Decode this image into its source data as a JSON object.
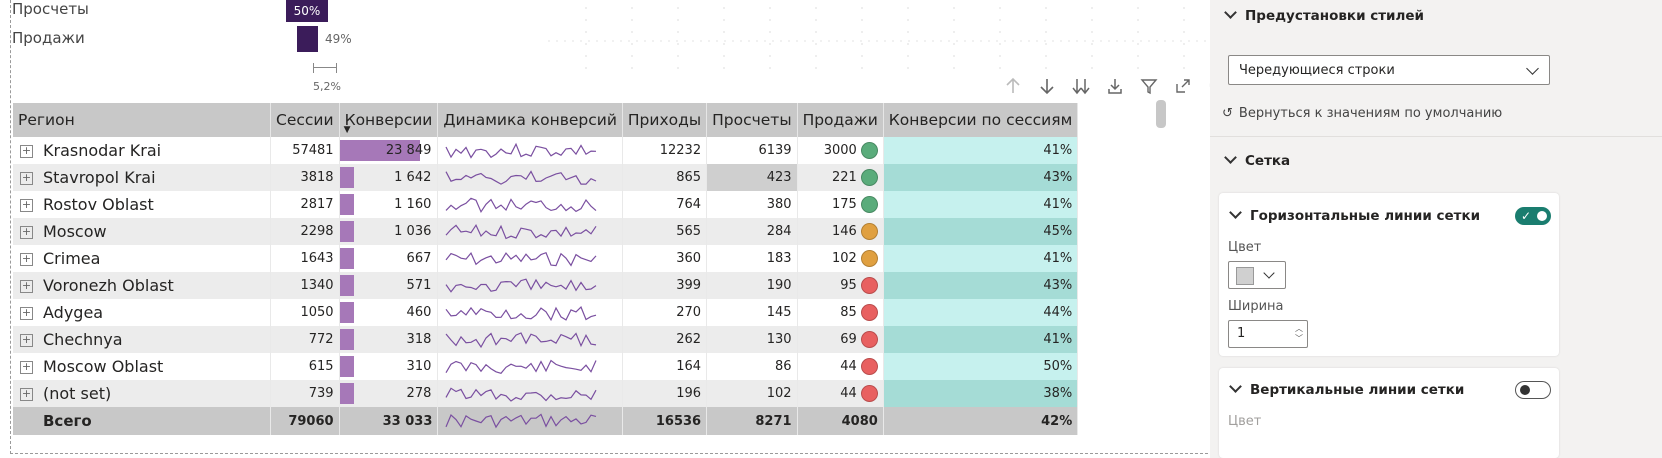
{
  "funnel": {
    "rows": [
      {
        "label": "Просчеты",
        "pct": "50%",
        "value": 0.5
      },
      {
        "label": "Продажи",
        "pct": "49%",
        "value": 0.49
      }
    ],
    "interval_label": "5,2%",
    "bar_color": "#3b1c5a"
  },
  "visual_header_icons": [
    "arrow-up-icon",
    "arrow-down-icon",
    "double-arrow-down-icon",
    "expand-hierarchy-icon",
    "filter-icon",
    "focus-mode-icon",
    "more-options-icon"
  ],
  "table": {
    "headers": [
      "Регион",
      "Сессии",
      "Конверсии",
      "Динамика конверсий",
      "Приходы",
      "Просчеты",
      "Продажи",
      "Конверсии по сессиям"
    ],
    "sorted_column": "Конверсии",
    "sort_direction": "descending",
    "rows": [
      {
        "region": "Krasnodar Krai",
        "sessions": "57481",
        "conversions": "23 849",
        "conv_value": 23849,
        "arrivals": "12232",
        "estimates": "6139",
        "sales": "3000",
        "status": "green",
        "conv_rate": "41%"
      },
      {
        "region": "Stavropol Krai",
        "sessions": "3818",
        "conversions": "1 642",
        "conv_value": 1642,
        "arrivals": "865",
        "estimates": "423",
        "sales": "221",
        "status": "green",
        "conv_rate": "43%"
      },
      {
        "region": "Rostov Oblast",
        "sessions": "2817",
        "conversions": "1 160",
        "conv_value": 1160,
        "arrivals": "764",
        "estimates": "380",
        "sales": "175",
        "status": "green",
        "conv_rate": "41%"
      },
      {
        "region": "Moscow",
        "sessions": "2298",
        "conversions": "1 036",
        "conv_value": 1036,
        "arrivals": "565",
        "estimates": "284",
        "sales": "146",
        "status": "orange",
        "conv_rate": "45%"
      },
      {
        "region": "Crimea",
        "sessions": "1643",
        "conversions": "667",
        "conv_value": 667,
        "arrivals": "360",
        "estimates": "183",
        "sales": "102",
        "status": "orange",
        "conv_rate": "41%"
      },
      {
        "region": "Voronezh Oblast",
        "sessions": "1340",
        "conversions": "571",
        "conv_value": 571,
        "arrivals": "399",
        "estimates": "190",
        "sales": "95",
        "status": "red",
        "conv_rate": "43%"
      },
      {
        "region": "Adygea",
        "sessions": "1050",
        "conversions": "460",
        "conv_value": 460,
        "arrivals": "270",
        "estimates": "145",
        "sales": "85",
        "status": "red",
        "conv_rate": "44%"
      },
      {
        "region": "Chechnya",
        "sessions": "772",
        "conversions": "318",
        "conv_value": 318,
        "arrivals": "262",
        "estimates": "130",
        "sales": "69",
        "status": "red",
        "conv_rate": "41%"
      },
      {
        "region": "Moscow Oblast",
        "sessions": "615",
        "conversions": "310",
        "conv_value": 310,
        "arrivals": "164",
        "estimates": "86",
        "sales": "44",
        "status": "red",
        "conv_rate": "50%"
      },
      {
        "region": "(not set)",
        "sessions": "739",
        "conversions": "278",
        "conv_value": 278,
        "arrivals": "196",
        "estimates": "102",
        "sales": "44",
        "status": "red",
        "conv_rate": "38%"
      }
    ],
    "total": {
      "region": "Всего",
      "sessions": "79060",
      "conversions": "33 033",
      "arrivals": "16536",
      "estimates": "8271",
      "sales": "4080",
      "conv_rate": "42%"
    },
    "colors": {
      "bar": "#a678b8",
      "spark": "#7a4fa0",
      "green": "#5aac7b",
      "orange": "#e0a040",
      "red": "#e86060",
      "conv_light": "#c6f1ee",
      "conv_dark": "#a5dcd6",
      "estimate_highlight": "#cfcfcf",
      "header_bg": "#c8c8c8"
    }
  },
  "pane": {
    "style_presets": {
      "title": "Предустановки стилей",
      "selected": "Чередующиеся строки"
    },
    "reset_label": "Вернуться к значениям по умолчанию",
    "grid": {
      "title": "Сетка",
      "horizontal": {
        "title": "Горизонтальные линии сетки",
        "enabled": true,
        "color_label": "Цвет",
        "width_label": "Ширина",
        "width_value": "1",
        "color": "#d0d0d0"
      },
      "vertical": {
        "title": "Вертикальные линии сетки",
        "enabled": false,
        "color_label": "Цвет"
      }
    }
  }
}
